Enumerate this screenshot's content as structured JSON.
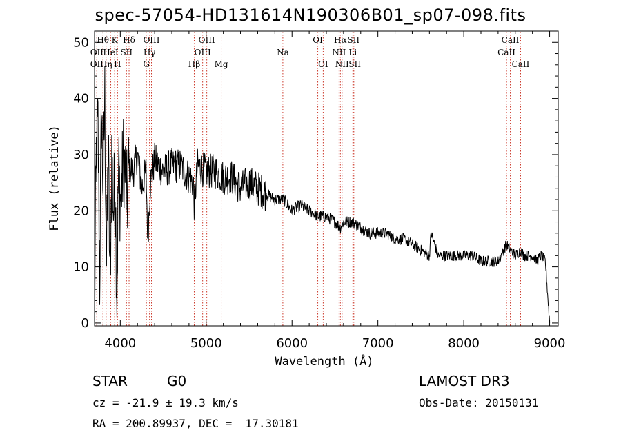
{
  "title": "spec-57054-HD131614N190306B01_sp07-098.fits",
  "info": {
    "class": "STAR",
    "subclass": "G0",
    "survey": "LAMOST DR3",
    "redshift": "cz = -21.9 ± 19.3 km/s",
    "obs_date": "Obs-Date: 20150131",
    "coords": "RA = 200.89937, DEC =  17.30181"
  },
  "chart_data": {
    "type": "line",
    "title": "spec-57054-HD131614N190306B01_sp07-098.fits",
    "xlabel": "Wavelength (Å)",
    "ylabel": "Flux (relative)",
    "xlim": [
      3700,
      9100
    ],
    "ylim": [
      -0.5,
      52
    ],
    "xticks": [
      4000,
      5000,
      6000,
      7000,
      8000,
      9000
    ],
    "yticks": [
      0,
      10,
      20,
      30,
      40,
      50
    ],
    "series": [
      {
        "name": "flux",
        "x": [
          3700,
          3720,
          3740,
          3760,
          3780,
          3800,
          3820,
          3840,
          3860,
          3880,
          3900,
          3920,
          3940,
          3960,
          3980,
          4000,
          4020,
          4040,
          4060,
          4080,
          4100,
          4150,
          4200,
          4250,
          4300,
          4320,
          4350,
          4400,
          4450,
          4500,
          4600,
          4700,
          4800,
          4850,
          4861,
          4900,
          5000,
          5100,
          5200,
          5300,
          5400,
          5500,
          5600,
          5700,
          5800,
          5900,
          6000,
          6100,
          6200,
          6300,
          6400,
          6500,
          6563,
          6600,
          6700,
          6800,
          6900,
          7000,
          7100,
          7200,
          7300,
          7400,
          7500,
          7600,
          7620,
          7700,
          7800,
          7900,
          8000,
          8100,
          8200,
          8300,
          8400,
          8498,
          8542,
          8600,
          8662,
          8700,
          8800,
          8850,
          8900,
          8950,
          9000
        ],
        "y": [
          2,
          30,
          35,
          8,
          38,
          25,
          40,
          10,
          32,
          6,
          30,
          20,
          26,
          5,
          28,
          22,
          25,
          30,
          26,
          21,
          28,
          27,
          30,
          24,
          27,
          15,
          25,
          29,
          28,
          27,
          28,
          28,
          26,
          25,
          21,
          28,
          27,
          27,
          26,
          26,
          24,
          25,
          24,
          23,
          22,
          22,
          20,
          21,
          20,
          19,
          19,
          18,
          17,
          18,
          18,
          17,
          16,
          16,
          16,
          15,
          15,
          14,
          13,
          12,
          16,
          12,
          12,
          12,
          12,
          12,
          11,
          11,
          11,
          14,
          13,
          12,
          13,
          12,
          12,
          11,
          12,
          11,
          0
        ]
      }
    ],
    "lines": [
      {
        "label": "OII",
        "wl": 3727,
        "row": 1
      },
      {
        "label": "OII",
        "wl": 3727,
        "row": 2
      },
      {
        "label": "Hθ",
        "wl": 3798,
        "row": 0
      },
      {
        "label": "Hη",
        "wl": 3835,
        "row": 2
      },
      {
        "label": "HeI",
        "wl": 3889,
        "row": 1
      },
      {
        "label": "K",
        "wl": 3934,
        "row": 0
      },
      {
        "label": "H",
        "wl": 3968,
        "row": 2
      },
      {
        "label": "SII",
        "wl": 4072,
        "row": 1
      },
      {
        "label": "Hδ",
        "wl": 4102,
        "row": 0
      },
      {
        "label": "G",
        "wl": 4304,
        "row": 2
      },
      {
        "label": "Hγ",
        "wl": 4340,
        "row": 1
      },
      {
        "label": "OIII",
        "wl": 4363,
        "row": 0
      },
      {
        "label": "Hβ",
        "wl": 4861,
        "row": 2
      },
      {
        "label": "OIII",
        "wl": 4959,
        "row": 1
      },
      {
        "label": "OIII",
        "wl": 5007,
        "row": 0
      },
      {
        "label": "Mg",
        "wl": 5175,
        "row": 2
      },
      {
        "label": "Na",
        "wl": 5893,
        "row": 1
      },
      {
        "label": "OI",
        "wl": 6300,
        "row": 0
      },
      {
        "label": "OI",
        "wl": 6363,
        "row": 2
      },
      {
        "label": "NII",
        "wl": 6548,
        "row": 1
      },
      {
        "label": "Hα",
        "wl": 6563,
        "row": 0
      },
      {
        "label": "NII",
        "wl": 6583,
        "row": 2
      },
      {
        "label": "SII",
        "wl": 6716,
        "row": 0
      },
      {
        "label": "Li",
        "wl": 6708,
        "row": 1
      },
      {
        "label": "SII",
        "wl": 6731,
        "row": 2
      },
      {
        "label": "CaII",
        "wl": 8498,
        "row": 1
      },
      {
        "label": "CaII",
        "wl": 8542,
        "row": 0
      },
      {
        "label": "CaII",
        "wl": 8662,
        "row": 2
      }
    ]
  }
}
